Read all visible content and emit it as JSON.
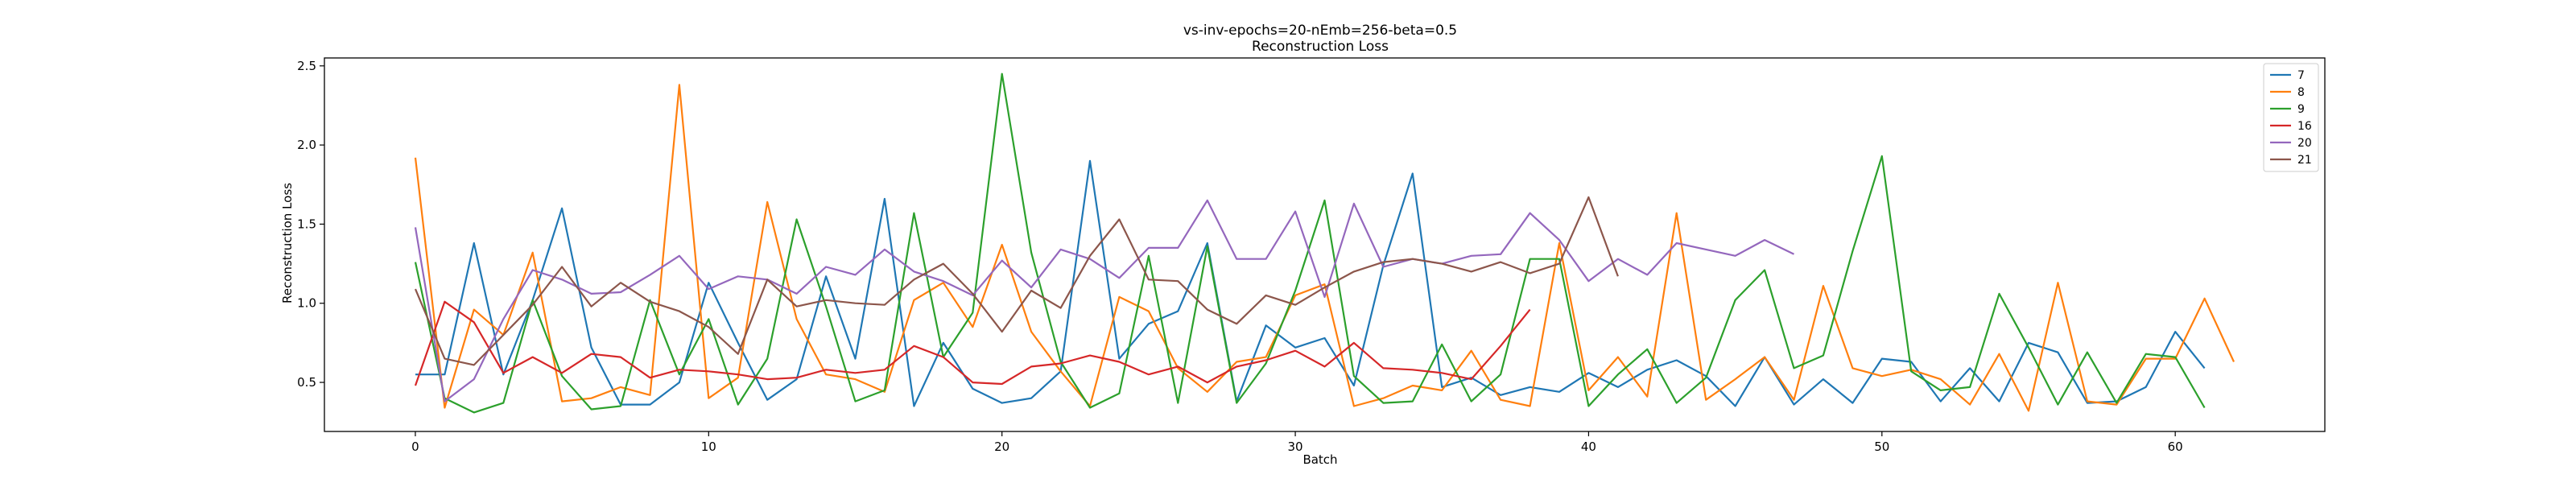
{
  "chart_data": {
    "type": "line",
    "title": "vs-inv-epochs=20-nEmb=256-beta=0.5",
    "subtitle": "Reconstruction Loss",
    "xlabel": "Batch",
    "ylabel": "Reconstruction Loss",
    "xlim": [
      -3.1,
      65.1
    ],
    "ylim": [
      0.19,
      2.55
    ],
    "xticks": [
      0,
      10,
      20,
      30,
      40,
      50,
      60
    ],
    "yticks": [
      0.5,
      1.0,
      1.5,
      2.0,
      2.5
    ],
    "xtick_labels": [
      "0",
      "10",
      "20",
      "30",
      "40",
      "50",
      "60"
    ],
    "ytick_labels": [
      "0.5",
      "1.0",
      "1.5",
      "2.0",
      "2.5"
    ],
    "grid": false,
    "legend_position": "top-right",
    "series": [
      {
        "name": "7",
        "color": "#1f77b4",
        "values": [
          0.55,
          0.55,
          1.38,
          0.55,
          1.02,
          1.6,
          0.72,
          0.36,
          0.36,
          0.5,
          1.13,
          0.75,
          0.39,
          0.52,
          1.17,
          0.65,
          1.66,
          0.35,
          0.75,
          0.46,
          0.37,
          0.4,
          0.57,
          1.9,
          0.65,
          0.87,
          0.95,
          1.38,
          0.38,
          0.86,
          0.72,
          0.78,
          0.48,
          1.24,
          1.82,
          0.47,
          0.53,
          0.42,
          0.47,
          0.44,
          0.56,
          0.47,
          0.58,
          0.64,
          0.54,
          0.35,
          0.66,
          0.36,
          0.52,
          0.37,
          0.65,
          0.63,
          0.38,
          0.59,
          0.38,
          0.75,
          0.69,
          0.37,
          0.38,
          0.47,
          0.82,
          0.59
        ]
      },
      {
        "name": "8",
        "color": "#ff7f0e",
        "values": [
          1.92,
          0.34,
          0.96,
          0.8,
          1.32,
          0.38,
          0.4,
          0.47,
          0.42,
          2.38,
          0.4,
          0.53,
          1.64,
          0.9,
          0.55,
          0.52,
          0.44,
          1.02,
          1.13,
          0.85,
          1.37,
          0.82,
          0.57,
          0.35,
          1.04,
          0.95,
          0.59,
          0.44,
          0.63,
          0.66,
          1.05,
          1.12,
          0.35,
          0.4,
          0.48,
          0.45,
          0.7,
          0.39,
          0.35,
          1.38,
          0.45,
          0.66,
          0.41,
          1.57,
          0.39,
          0.52,
          0.66,
          0.39,
          1.11,
          0.59,
          0.54,
          0.58,
          0.52,
          0.36,
          0.68,
          0.32,
          1.13,
          0.38,
          0.36,
          0.65,
          0.65,
          1.03,
          0.63
        ]
      },
      {
        "name": "9",
        "color": "#2ca02c",
        "values": [
          1.26,
          0.4,
          0.31,
          0.37,
          1.02,
          0.54,
          0.33,
          0.35,
          1.02,
          0.55,
          0.9,
          0.36,
          0.65,
          1.53,
          0.98,
          0.38,
          0.45,
          1.57,
          0.66,
          0.94,
          2.45,
          1.32,
          0.63,
          0.34,
          0.43,
          1.3,
          0.37,
          1.36,
          0.37,
          0.62,
          1.08,
          1.65,
          0.54,
          0.37,
          0.38,
          0.74,
          0.38,
          0.55,
          1.28,
          1.28,
          0.35,
          0.55,
          0.71,
          0.37,
          0.53,
          1.02,
          1.21,
          0.59,
          0.67,
          1.33,
          1.93,
          0.57,
          0.45,
          0.47,
          1.06,
          0.72,
          0.36,
          0.69,
          0.37,
          0.68,
          0.66,
          0.34
        ]
      },
      {
        "name": "16",
        "color": "#d62728",
        "values": [
          0.48,
          1.01,
          0.88,
          0.56,
          0.66,
          0.56,
          0.68,
          0.66,
          0.53,
          0.58,
          0.57,
          0.55,
          0.52,
          0.53,
          0.58,
          0.56,
          0.58,
          0.73,
          0.66,
          0.5,
          0.49,
          0.6,
          0.62,
          0.67,
          0.63,
          0.55,
          0.6,
          0.5,
          0.6,
          0.64,
          0.7,
          0.6,
          0.75,
          0.59,
          0.58,
          0.56,
          0.52,
          0.73,
          0.96
        ]
      },
      {
        "name": "20",
        "color": "#9467bd",
        "values": [
          1.48,
          0.38,
          0.52,
          0.9,
          1.21,
          1.15,
          1.06,
          1.07,
          1.18,
          1.3,
          1.09,
          1.17,
          1.15,
          1.06,
          1.23,
          1.18,
          1.34,
          1.2,
          1.14,
          1.05,
          1.27,
          1.1,
          1.34,
          1.28,
          1.16,
          1.35,
          1.35,
          1.65,
          1.28,
          1.28,
          1.58,
          1.04,
          1.63,
          1.23,
          1.28,
          1.25,
          1.3,
          1.31,
          1.57,
          1.4,
          1.14,
          1.28,
          1.18,
          1.38,
          1.34,
          1.3,
          1.4,
          1.31
        ]
      },
      {
        "name": "21",
        "color": "#8c564b",
        "values": [
          1.09,
          0.65,
          0.61,
          0.8,
          0.99,
          1.23,
          0.98,
          1.13,
          1.01,
          0.95,
          0.85,
          0.68,
          1.15,
          0.98,
          1.02,
          1.0,
          0.99,
          1.15,
          1.25,
          1.06,
          0.82,
          1.08,
          0.97,
          1.3,
          1.53,
          1.15,
          1.14,
          0.96,
          0.87,
          1.05,
          0.99,
          1.1,
          1.2,
          1.26,
          1.28,
          1.25,
          1.2,
          1.26,
          1.19,
          1.25,
          1.67,
          1.17
        ]
      }
    ]
  }
}
